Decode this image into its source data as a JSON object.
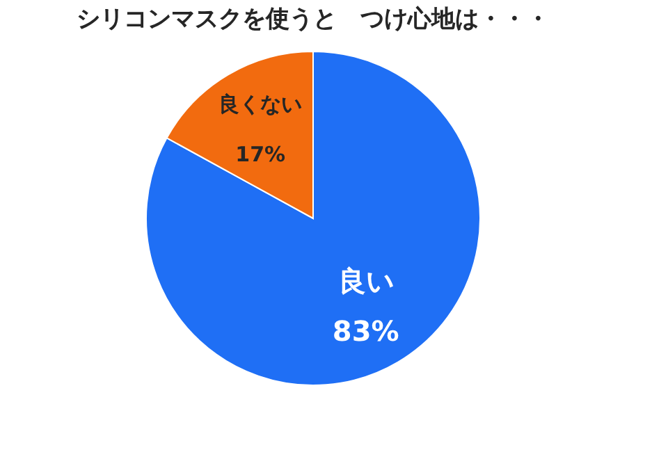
{
  "chart_data": {
    "type": "pie",
    "title": "シリコンマスクを使うと　つけ心地は・・・",
    "categories": [
      "良い",
      "良くない"
    ],
    "values": [
      83,
      17
    ],
    "value_labels": [
      "83%",
      "17%"
    ],
    "colors": [
      "#1f6ff5",
      "#f26b0f"
    ],
    "legend": false
  }
}
